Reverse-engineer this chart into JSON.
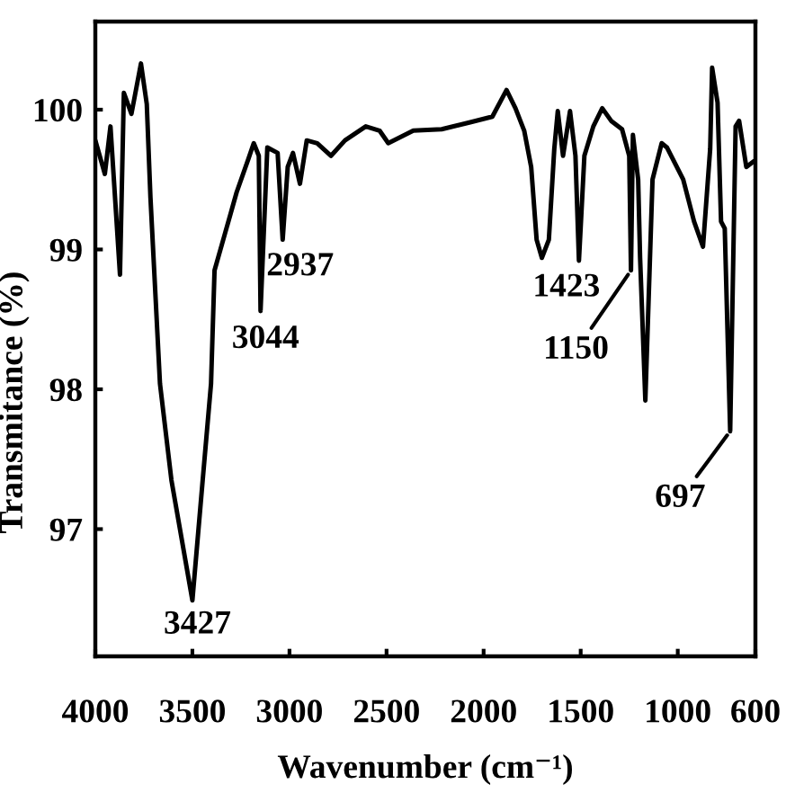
{
  "chart_data": {
    "type": "line",
    "xlabel": "Wavenumber (cm⁻¹)",
    "ylabel": "Transmitance (%)",
    "x": [
      4000,
      3951,
      3922,
      3873,
      3853,
      3814,
      3765,
      3735,
      3716,
      3667,
      3608,
      3500,
      3447,
      3404,
      3386,
      3333,
      3272,
      3211,
      3184,
      3158,
      3149,
      3114,
      3061,
      3035,
      3009,
      2982,
      2946,
      2911,
      2857,
      2786,
      2714,
      2607,
      2536,
      2491,
      2362,
      2216,
      2069,
      1955,
      1882,
      1836,
      1791,
      1755,
      1727,
      1700,
      1664,
      1636,
      1618,
      1591,
      1555,
      1527,
      1509,
      1481,
      1435,
      1389,
      1343,
      1287,
      1250,
      1241,
      1231,
      1204,
      1194,
      1167,
      1130,
      1083,
      1056,
      972,
      916,
      870,
      833,
      823,
      795,
      777,
      758,
      730,
      702,
      684,
      647,
      609
    ],
    "series": [
      {
        "color": "#000000",
        "values": [
          99.78,
          99.54,
          99.88,
          98.82,
          100.12,
          99.97,
          100.33,
          100.04,
          99.37,
          98.04,
          97.35,
          96.49,
          97.35,
          98.04,
          98.85,
          99.11,
          99.41,
          99.65,
          99.76,
          99.67,
          98.56,
          99.73,
          99.69,
          99.07,
          99.59,
          99.69,
          99.47,
          99.78,
          99.76,
          99.67,
          99.78,
          99.88,
          99.85,
          99.76,
          99.85,
          99.86,
          99.91,
          99.95,
          100.14,
          100.01,
          99.85,
          99.59,
          99.07,
          98.94,
          99.07,
          99.72,
          99.99,
          99.67,
          99.99,
          99.67,
          98.92,
          99.67,
          99.88,
          100.01,
          99.92,
          99.86,
          99.67,
          98.85,
          99.82,
          99.5,
          98.94,
          97.92,
          99.5,
          99.76,
          99.73,
          99.5,
          99.2,
          99.02,
          99.72,
          100.3,
          100.05,
          99.2,
          99.15,
          97.7,
          99.88,
          99.92,
          99.59,
          99.63
        ]
      }
    ],
    "xlim": [
      4000,
      600
    ],
    "ylim": [
      96.09,
      100.63
    ],
    "xticks": [
      4000,
      3500,
      3000,
      2500,
      2000,
      1500,
      1000,
      600
    ],
    "yticks": [
      97,
      98,
      99,
      100
    ],
    "annotations": [
      {
        "text": "3427",
        "x": 3500,
        "y": 96.49
      },
      {
        "text": "3044",
        "x": 3149,
        "y": 98.56
      },
      {
        "text": "2937",
        "x": 3035,
        "y": 99.07
      },
      {
        "text": "1423",
        "x": 1509,
        "y": 98.92
      },
      {
        "text": "1150",
        "x": 1241,
        "y": 98.85
      },
      {
        "text": "697",
        "x": 730,
        "y": 97.7
      }
    ]
  }
}
